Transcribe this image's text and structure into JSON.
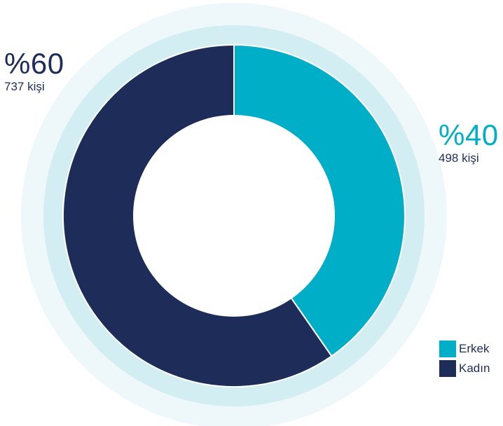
{
  "chart_data": {
    "type": "pie",
    "donut": true,
    "slices": [
      {
        "label": "Erkek",
        "percent_label": "%40",
        "count_label": "498 kişi",
        "value": 498,
        "color": "#00aec8"
      },
      {
        "label": "Kadın",
        "percent_label": "%60",
        "count_label": "737 kişi",
        "value": 737,
        "color": "#1e2c59"
      }
    ],
    "legend": {
      "placement": "bottom-right",
      "items": [
        {
          "label": "Erkek",
          "color": "#00aec8"
        },
        {
          "label": "Kadın",
          "color": "#1e2c59"
        }
      ]
    }
  },
  "colors": {
    "halo_outer": "#eef8fa",
    "halo_inner": "#d2eef3",
    "separator": "#ffffff"
  }
}
